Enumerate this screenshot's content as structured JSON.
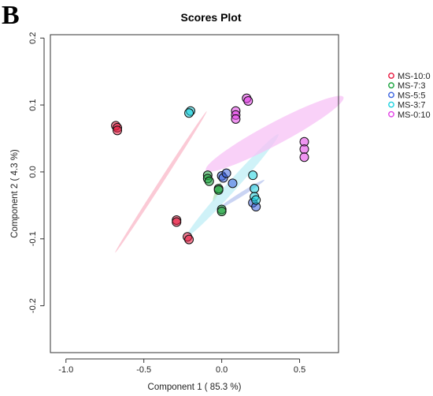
{
  "panel_label": "B",
  "chart_data": {
    "type": "scatter",
    "title": "Scores Plot",
    "xlabel": "Component 1 ( 85.3 %)",
    "ylabel": "Component 2 ( 4.3 %)",
    "xlim": [
      -1.1,
      0.75
    ],
    "ylim": [
      -0.27,
      0.205
    ],
    "xticks": [
      -1.0,
      -0.5,
      0.0,
      0.5
    ],
    "xtick_labels": [
      "-1.0",
      "-0.5",
      "0.0",
      "0.5"
    ],
    "yticks": [
      -0.2,
      -0.1,
      0.0,
      0.1,
      0.2
    ],
    "ytick_labels": [
      "-0.2",
      "-0.1",
      "0.0",
      "0.1",
      "0.2"
    ],
    "grid": false,
    "legend_position": "right",
    "series": [
      {
        "name": "MS-10:0",
        "color": "#e8173e",
        "x": [
          -0.68,
          -0.67,
          -0.67,
          -0.29,
          -0.29,
          -0.22,
          -0.21
        ],
        "y": [
          0.069,
          0.066,
          0.062,
          -0.072,
          -0.075,
          -0.097,
          -0.101
        ],
        "ellipse": {
          "cx": -0.39,
          "cy": -0.015,
          "rx": 0.54,
          "ry": 0.012,
          "angle": -57,
          "color": "#f9b8c8"
        }
      },
      {
        "name": "MS-7:3",
        "color": "#17a23a",
        "x": [
          -0.09,
          -0.09,
          -0.08,
          -0.02,
          -0.02,
          0.0,
          0.0
        ],
        "y": [
          -0.005,
          -0.01,
          -0.014,
          -0.025,
          -0.027,
          -0.056,
          -0.059
        ],
        "ellipse": {
          "cx": -0.03,
          "cy": -0.03,
          "rx": 0.065,
          "ry": 0.012,
          "angle": -68,
          "color": "#b7e3b9"
        }
      },
      {
        "name": "MS-5:5",
        "color": "#3a63e0",
        "x": [
          0.0,
          0.01,
          0.03,
          0.07,
          0.2,
          0.22
        ],
        "y": [
          -0.006,
          -0.009,
          -0.002,
          -0.017,
          -0.046,
          -0.052
        ],
        "ellipse": {
          "cx": 0.13,
          "cy": -0.033,
          "rx": 0.17,
          "ry": 0.013,
          "angle": -32,
          "color": "#b8c5ef"
        }
      },
      {
        "name": "MS-3:7",
        "color": "#19d1df",
        "x": [
          -0.2,
          -0.21,
          0.2,
          0.21,
          0.21,
          0.22
        ],
        "y": [
          0.091,
          0.088,
          -0.005,
          -0.025,
          -0.037,
          -0.042
        ],
        "ellipse": {
          "cx": 0.07,
          "cy": -0.02,
          "rx": 0.44,
          "ry": 0.032,
          "angle": -48,
          "color": "#bfeef6"
        }
      },
      {
        "name": "MS-0:10",
        "color": "#e23ee6",
        "x": [
          0.09,
          0.09,
          0.09,
          0.16,
          0.17,
          0.53,
          0.53,
          0.53
        ],
        "y": [
          0.091,
          0.085,
          0.079,
          0.11,
          0.106,
          0.045,
          0.034,
          0.022
        ],
        "ellipse": {
          "cx": 0.34,
          "cy": 0.057,
          "rx": 0.5,
          "ry": 0.07,
          "angle": -28,
          "color": "#f7c2f5"
        }
      }
    ]
  }
}
